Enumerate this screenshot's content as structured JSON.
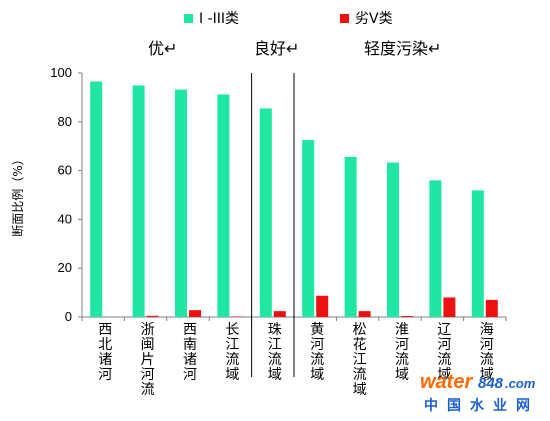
{
  "chart_data": {
    "type": "bar",
    "title": "",
    "xlabel": "",
    "ylabel": "断面比例（%）",
    "ylim": [
      0,
      100
    ],
    "y_ticks": [
      "0",
      "20",
      "40",
      "60",
      "80",
      "100"
    ],
    "grid": false,
    "legend_position": "top",
    "categories": [
      "西北诸河",
      "浙闽片河流",
      "西南诸河",
      "长江流域",
      "珠江流域",
      "黄河流域",
      "松花江流域",
      "淮河流域",
      "辽河流域",
      "海河流域"
    ],
    "series": [
      {
        "name": "I -III类",
        "color": "#1fe6a0",
        "values": [
          96.5,
          94.9,
          93.2,
          91.2,
          85.5,
          72.5,
          65.6,
          63.3,
          56.0,
          51.9
        ]
      },
      {
        "name": "劣V类",
        "color": "#ee1111",
        "values": [
          0,
          0.5,
          2.8,
          0.2,
          2.4,
          8.7,
          2.4,
          0.4,
          8.0,
          7.0
        ]
      }
    ],
    "groups": [
      {
        "label": "优↵",
        "categories": [
          0,
          1,
          2,
          3
        ]
      },
      {
        "label": "良好↵",
        "categories": [
          4
        ]
      },
      {
        "label": "轻度污染↵",
        "categories": [
          5,
          6,
          7,
          8,
          9
        ]
      }
    ]
  },
  "watermark": {
    "text_latin": "water",
    "text_num": "848",
    "text_suffix": ".com",
    "text_cn": "中国水业网",
    "color_primary": "#ff6a00",
    "color_secondary": "#1a5fd0"
  }
}
